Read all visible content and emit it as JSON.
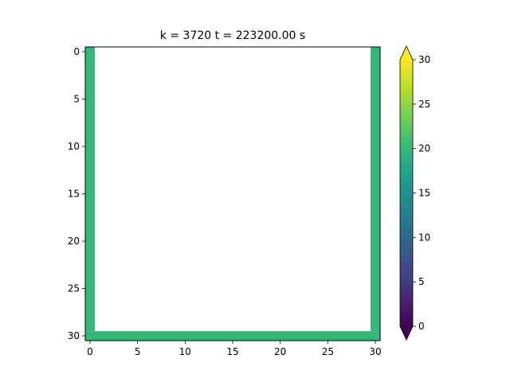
{
  "chart_data": {
    "type": "heatmap",
    "title": "k = 3720   t = 223200.00 s",
    "grid_shape": [
      31,
      31
    ],
    "xlim": [
      -0.5,
      30.5
    ],
    "ylim": [
      30.5,
      -0.5
    ],
    "y_inverted": true,
    "xticks": [
      0,
      5,
      10,
      15,
      20,
      25,
      30
    ],
    "yticks": [
      0,
      5,
      10,
      15,
      20,
      25,
      30
    ],
    "grid": false,
    "cell_regions": [
      {
        "name": "left-wall",
        "rows": [
          0,
          29
        ],
        "cols": [
          0,
          0
        ],
        "value": 20
      },
      {
        "name": "right-wall",
        "rows": [
          0,
          29
        ],
        "cols": [
          30,
          30
        ],
        "value": 20
      },
      {
        "name": "bottom-wall",
        "rows": [
          30,
          30
        ],
        "cols": [
          0,
          30
        ],
        "value": 20
      }
    ],
    "interior_value": null,
    "colorbar": {
      "colormap": "viridis",
      "vmin": 0,
      "vmax": 30,
      "ticks": [
        0,
        5,
        10,
        15,
        20,
        25,
        30
      ],
      "extend": "both",
      "min_color": "#440154",
      "max_color": "#fde725",
      "placement": "right"
    },
    "wall_color": "#35b779"
  }
}
